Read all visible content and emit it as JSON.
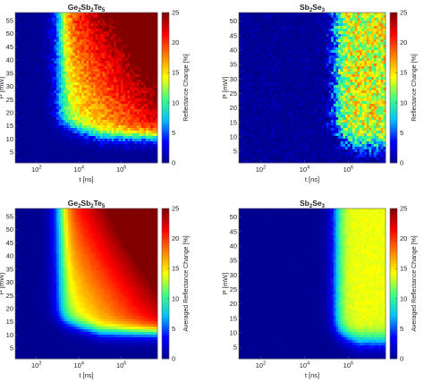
{
  "colormap": [
    "#00008f",
    "#0000ff",
    "#00bfff",
    "#40ff80",
    "#ffff00",
    "#ff8000",
    "#ff0000",
    "#800000"
  ],
  "chart_data": [
    {
      "type": "heatmap",
      "title_parts": [
        "Ge",
        "2",
        "Sb",
        "2",
        "Te",
        "5"
      ],
      "xlabel": "t [ns]",
      "ylabel": "P [mW]",
      "x_scale": "log",
      "x_tick_exponents": [
        2,
        4,
        6
      ],
      "x_tick_base": "10",
      "xlim_log10": [
        1,
        7.7
      ],
      "yticks": [
        5,
        10,
        15,
        20,
        25,
        30,
        35,
        40,
        45,
        50,
        55
      ],
      "ylim": [
        1,
        58
      ],
      "colorbar_label": "Reflectance Change [%]",
      "colorbar_ticks": [
        0,
        5,
        10,
        15,
        20,
        25
      ],
      "clim": [
        0,
        25
      ],
      "material": "gst",
      "noise": 1.6
    },
    {
      "type": "heatmap",
      "title_parts": [
        "Sb",
        "2",
        "Se",
        "3"
      ],
      "xlabel": "t [ns]",
      "ylabel": "P [mW]",
      "x_scale": "log",
      "x_tick_exponents": [
        2,
        4,
        6
      ],
      "x_tick_base": "10",
      "xlim_log10": [
        1,
        7.7
      ],
      "yticks": [
        5,
        10,
        15,
        20,
        25,
        30,
        35,
        40,
        45,
        50
      ],
      "ylim": [
        1,
        53
      ],
      "colorbar_label": "Reflectance Change [%]",
      "colorbar_ticks": [
        0,
        5,
        10,
        15,
        20,
        25
      ],
      "clim": [
        0,
        25
      ],
      "material": "sbse",
      "noise": 4.0
    },
    {
      "type": "heatmap",
      "title_parts": [
        "Ge",
        "2",
        "Sb",
        "2",
        "Te",
        "5"
      ],
      "xlabel": "t [ns]",
      "ylabel": "P [mW]",
      "x_scale": "log",
      "x_tick_exponents": [
        2,
        4,
        6
      ],
      "x_tick_base": "10",
      "xlim_log10": [
        1,
        7.7
      ],
      "yticks": [
        5,
        10,
        15,
        20,
        25,
        30,
        35,
        40,
        45,
        50,
        55
      ],
      "ylim": [
        1,
        58
      ],
      "colorbar_label": "Averaged Reflectance Change [%]",
      "colorbar_ticks": [
        0,
        5,
        10,
        15,
        20,
        25
      ],
      "clim": [
        0,
        25
      ],
      "material": "gst",
      "noise": 0.2
    },
    {
      "type": "heatmap",
      "title_parts": [
        "Sb",
        "2",
        "Se",
        "3"
      ],
      "xlabel": "t [ns]",
      "ylabel": "P [mW]",
      "x_scale": "log",
      "x_tick_exponents": [
        2,
        4,
        6
      ],
      "x_tick_base": "10",
      "xlim_log10": [
        1,
        7.7
      ],
      "yticks": [
        5,
        10,
        15,
        20,
        25,
        30,
        35,
        40,
        45,
        50
      ],
      "ylim": [
        1,
        53
      ],
      "colorbar_label": "Averaged Reflectance Change [%]",
      "colorbar_ticks": [
        0,
        5,
        10,
        15,
        20,
        25
      ],
      "clim": [
        0,
        25
      ],
      "material": "sbse",
      "noise": 0.4
    }
  ]
}
